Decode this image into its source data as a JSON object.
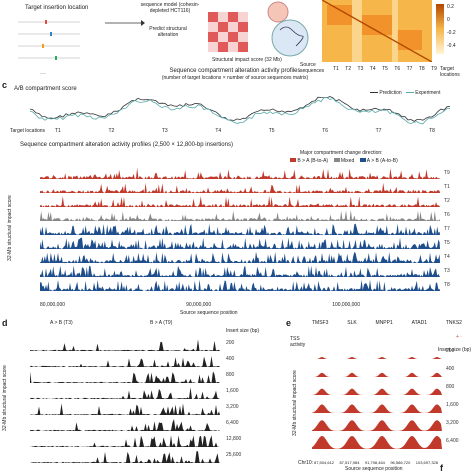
{
  "panel_a": {
    "target_insertion_location": "Target insertion location",
    "sequence_model": "sequence model (cohesin-depleted HCT116)",
    "predict_structural_alteration": "Predict structural alteration",
    "structural_impact_score": "Structural impact score (32 Mb)",
    "source_sequences": "Source sequences",
    "target_locations": "Target locations",
    "target_ticks": [
      "T1",
      "T2",
      "T3",
      "T4",
      "T5",
      "T6",
      "T7",
      "T8",
      "T9"
    ],
    "colorbar_ticks": [
      "0.2",
      "0",
      "-0.2",
      "-0.4"
    ]
  },
  "panel_b": {
    "title": "Sequence compartment alteration activity profiles",
    "subtitle": "(number of target locations × number of source sequences matrix)"
  },
  "panel_c": {
    "letter": "c",
    "title": "A/B compartment score",
    "legend_prediction": "Prediction",
    "legend_experiment": "Experiment",
    "target_locations_label": "Target locations",
    "targets": [
      "T1",
      "T2",
      "T3",
      "T4",
      "T5",
      "T6",
      "T7",
      "T8"
    ],
    "profiles_title": "Sequence compartment alteration activity profiles (2,500 × 12,800-bp insertions)",
    "major_change_title": "Major compartment change direction:",
    "legend_b_to_a": "B > A (B-to-A)",
    "legend_mixed": "Mixed",
    "legend_a_to_b": "A > B (A-to-B)",
    "ylabel": "32-Mb structural impact score",
    "xlabel": "Source sequence position",
    "x_ticks": [
      "80,000,000",
      "90,000,000",
      "100,000,000"
    ],
    "track_labels": [
      "T9",
      "T1",
      "T2",
      "T6",
      "T7",
      "T5",
      "T4",
      "T3",
      "T8"
    ],
    "track_colors": [
      "#c0392b",
      "#c0392b",
      "#c0392b",
      "#888888",
      "#1f4e8c",
      "#1f4e8c",
      "#1f4e8c",
      "#1f4e8c",
      "#1f4e8c"
    ]
  },
  "panel_d": {
    "letter": "d",
    "col1": "A > B (T3)",
    "col2": "B > A (T9)",
    "insert_size_label": "Insert size (bp)",
    "sizes": [
      "200",
      "400",
      "800",
      "1,600",
      "3,200",
      "6,400",
      "12,800",
      "25,600"
    ],
    "ylabel": "32-Mb structural impact score"
  },
  "panel_e": {
    "letter": "e",
    "genes": [
      "TMSF3",
      "SLK",
      "MNPP1",
      "ATAD1",
      "TNKS2"
    ],
    "tss_label": "TSS activity",
    "insert_size_label": "Insert size (bp)",
    "legend_plus": "+",
    "legend_minus": "-",
    "chr_label": "Chr10:",
    "coords": [
      "87,504,612",
      "87,517,984",
      "91,798,464",
      "96,586,720",
      "103,697,328"
    ],
    "xlabel": "Source sequence position",
    "ylabel": "32-Mb structural impact score",
    "sizes": [
      "200",
      "400",
      "800",
      "1,600",
      "3,200",
      "6,400"
    ]
  },
  "panel_f": {
    "letter": "f"
  }
}
